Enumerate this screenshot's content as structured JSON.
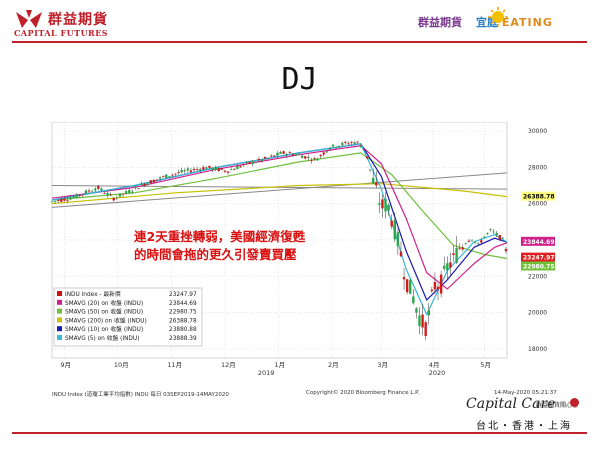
{
  "header": {
    "company_zh": "群益期貨",
    "company_en": "CAPITAL FUTURES",
    "slogan_part1": "群益期貨",
    "slogan_part2": "宜庭",
    "slogan_part3": "EATING"
  },
  "title": "DJ",
  "annotation": {
    "line1": "連2天重挫轉弱，美國經濟復甦",
    "line2": "的時間會拖的更久引發賣買壓"
  },
  "chart_data": {
    "type": "line",
    "series_type": "candlestick",
    "y_ticks": [
      "30000",
      "28000",
      "26000",
      "24000",
      "22000",
      "20000",
      "18000"
    ],
    "y_range": [
      17500,
      30500
    ],
    "x_ticks": [
      "9月",
      "10月",
      "11月",
      "12月",
      "1月",
      "2月",
      "3月",
      "4月",
      "5月"
    ],
    "year_labels": [
      "2019",
      "2020"
    ],
    "right_labels": [
      {
        "value": 26388.78,
        "text": "26388.78",
        "color": "#ffff80"
      },
      {
        "value": 23844.69,
        "text": "23844.69",
        "color": "#d0208a"
      },
      {
        "value": 23247.97,
        "text": "23247.97",
        "color": "#e02020"
      },
      {
        "value": 22980.75,
        "text": "22980.75",
        "color": "#6fbf3a"
      }
    ],
    "legend": [
      {
        "label": "INDU Index - 最新價",
        "value": "23247.97",
        "color": "#d01010"
      },
      {
        "label": "SMAVG (20)  on 收盤 (INDU)",
        "value": "23844.69",
        "color": "#d0208a"
      },
      {
        "label": "SMAVG (50)  on 收盤 (INDU)",
        "value": "22980.75",
        "color": "#6fbf3a"
      },
      {
        "label": "SMAVG (200) on 收盤 (INDU)",
        "value": "26388.78",
        "color": "#c8c000"
      },
      {
        "label": "SMAVG (10)  on 收盤 (INDU)",
        "value": "23880.88",
        "color": "#1a1ab0"
      },
      {
        "label": "SMAVG (5)   on 收盤 (INDU)",
        "value": "23888.39",
        "color": "#3ab8d8"
      }
    ],
    "price_path": [
      {
        "t": 0,
        "v": 26100
      },
      {
        "t": 12,
        "v": 26400
      },
      {
        "t": 22,
        "v": 26900
      },
      {
        "t": 30,
        "v": 26300
      },
      {
        "t": 38,
        "v": 26700
      },
      {
        "t": 45,
        "v": 27100
      },
      {
        "t": 55,
        "v": 27500
      },
      {
        "t": 65,
        "v": 27800
      },
      {
        "t": 75,
        "v": 28000
      },
      {
        "t": 85,
        "v": 27800
      },
      {
        "t": 95,
        "v": 28200
      },
      {
        "t": 105,
        "v": 28500
      },
      {
        "t": 112,
        "v": 28800
      },
      {
        "t": 120,
        "v": 28700
      },
      {
        "t": 128,
        "v": 28400
      },
      {
        "t": 135,
        "v": 29100
      },
      {
        "t": 142,
        "v": 29300
      },
      {
        "t": 148,
        "v": 29400
      },
      {
        "t": 152,
        "v": 29000
      },
      {
        "t": 156,
        "v": 27200
      },
      {
        "t": 160,
        "v": 25800
      },
      {
        "t": 163,
        "v": 26000
      },
      {
        "t": 166,
        "v": 24800
      },
      {
        "t": 169,
        "v": 23500
      },
      {
        "t": 172,
        "v": 21800
      },
      {
        "t": 175,
        "v": 21000
      },
      {
        "t": 178,
        "v": 19900
      },
      {
        "t": 180,
        "v": 19400
      },
      {
        "t": 182,
        "v": 19200
      },
      {
        "t": 184,
        "v": 20500
      },
      {
        "t": 186,
        "v": 21500
      },
      {
        "t": 189,
        "v": 21600
      },
      {
        "t": 192,
        "v": 22500
      },
      {
        "t": 195,
        "v": 22900
      },
      {
        "t": 198,
        "v": 23600
      },
      {
        "t": 201,
        "v": 23900
      },
      {
        "t": 204,
        "v": 24100
      },
      {
        "t": 207,
        "v": 23700
      },
      {
        "t": 210,
        "v": 24200
      },
      {
        "t": 213,
        "v": 24500
      },
      {
        "t": 216,
        "v": 24300
      },
      {
        "t": 219,
        "v": 24000
      },
      {
        "t": 221,
        "v": 23250
      }
    ],
    "sma_lines": [
      {
        "name": "SMAVG (200)",
        "color": "#c8c000",
        "points": [
          [
            0,
            26000
          ],
          [
            60,
            26600
          ],
          [
            120,
            27000
          ],
          [
            160,
            27100
          ],
          [
            200,
            26700
          ],
          [
            221,
            26390
          ]
        ]
      },
      {
        "name": "SMAVG (50)",
        "color": "#6fbf3a",
        "points": [
          [
            0,
            26200
          ],
          [
            40,
            26600
          ],
          [
            80,
            27400
          ],
          [
            120,
            28300
          ],
          [
            150,
            28800
          ],
          [
            165,
            27600
          ],
          [
            180,
            25600
          ],
          [
            195,
            23700
          ],
          [
            210,
            23200
          ],
          [
            221,
            22980
          ]
        ]
      },
      {
        "name": "SMAVG (20)",
        "color": "#d0208a",
        "points": [
          [
            0,
            26300
          ],
          [
            40,
            26900
          ],
          [
            80,
            27900
          ],
          [
            120,
            28700
          ],
          [
            150,
            29200
          ],
          [
            160,
            28200
          ],
          [
            172,
            25200
          ],
          [
            182,
            22200
          ],
          [
            192,
            21300
          ],
          [
            205,
            22700
          ],
          [
            215,
            23600
          ],
          [
            221,
            23845
          ]
        ]
      },
      {
        "name": "SMAVG (10)",
        "color": "#1a1ab0",
        "points": [
          [
            0,
            26200
          ],
          [
            40,
            27000
          ],
          [
            80,
            28000
          ],
          [
            120,
            28800
          ],
          [
            150,
            29300
          ],
          [
            160,
            27500
          ],
          [
            172,
            23400
          ],
          [
            182,
            20700
          ],
          [
            192,
            21800
          ],
          [
            205,
            23600
          ],
          [
            215,
            24100
          ],
          [
            221,
            23880
          ]
        ]
      },
      {
        "name": "SMAVG (5)",
        "color": "#3ab8d8",
        "points": [
          [
            0,
            26200
          ],
          [
            40,
            27000
          ],
          [
            80,
            28000
          ],
          [
            120,
            28800
          ],
          [
            150,
            29300
          ],
          [
            160,
            26800
          ],
          [
            172,
            22400
          ],
          [
            182,
            19900
          ],
          [
            192,
            22300
          ],
          [
            205,
            23900
          ],
          [
            215,
            24300
          ],
          [
            221,
            23888
          ]
        ]
      }
    ],
    "trend_lines": [
      {
        "from": [
          0,
          27000
        ],
        "to": [
          221,
          26800
        ],
        "color": "#888888"
      },
      {
        "from": [
          0,
          25800
        ],
        "to": [
          221,
          27700
        ],
        "color": "#888888"
      }
    ]
  },
  "footer": {
    "source": "INDU Index (道瓊工業平均指數) INDU  每日 03SEP2019-14MAY2020",
    "copyright": "Copyright© 2020 Bloomberg Finance L.P.",
    "timestamp": "14-May-2020 05:21:37",
    "brand": "Capital Care",
    "brand_sub": "群益期貨關心您",
    "cities": "台北・香港・上海"
  }
}
